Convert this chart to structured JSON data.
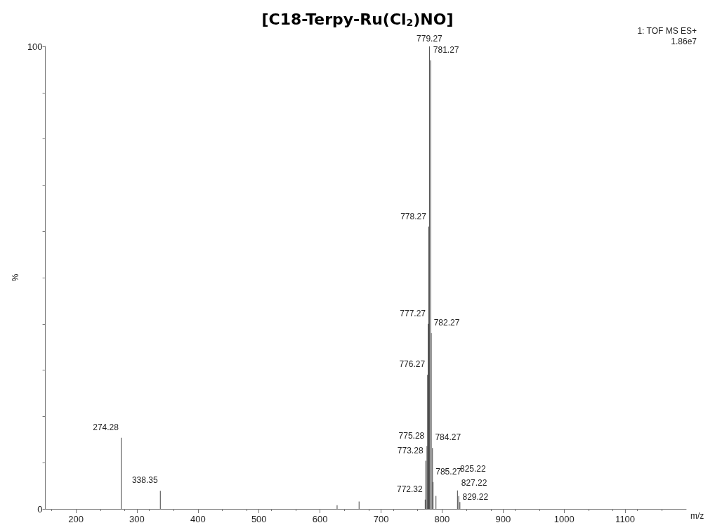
{
  "chart_data": {
    "type": "bar",
    "title": "[C18-Terpy-Ru(Cl$_{2}$)NO]",
    "xlabel": "m/z",
    "ylabel": "%",
    "annotations": [
      "1: TOF MS ES+",
      "1.86e7",
      {
        "text": "274.28",
        "x": 274.28,
        "y": 15.4
      },
      {
        "text": "338.35",
        "x": 338.35,
        "y": 3.9
      },
      {
        "text": "772.32",
        "x": 772.32,
        "y": 2
      },
      {
        "text": "773.28",
        "x": 773.28,
        "y": 10.4
      },
      {
        "text": "775.28",
        "x": 775.28,
        "y": 13.6
      },
      {
        "text": "776.27",
        "x": 776.27,
        "y": 29
      },
      {
        "text": "777.27",
        "x": 777.27,
        "y": 40
      },
      {
        "text": "778.27",
        "x": 778.27,
        "y": 61
      },
      {
        "text": "779.27",
        "x": 779.27,
        "y": 100
      },
      {
        "text": "781.27",
        "x": 781.27,
        "y": 97
      },
      {
        "text": "782.27",
        "x": 782.27,
        "y": 38
      },
      {
        "text": "784.27",
        "x": 784.27,
        "y": 13.2
      },
      {
        "text": "785.27",
        "x": 785.27,
        "y": 5.8
      },
      {
        "text": "825.22",
        "x": 825.22,
        "y": 4
      },
      {
        "text": "827.22",
        "x": 827.22,
        "y": 2.8
      },
      {
        "text": "829.22",
        "x": 829.22,
        "y": 1.5
      }
    ],
    "x": [
      274.28,
      338.35,
      628,
      664,
      772.32,
      773.28,
      775.28,
      776.27,
      777.27,
      778.27,
      779.27,
      781.27,
      782.27,
      784.27,
      785.27,
      790,
      825.22,
      827.22,
      829.22
    ],
    "values": [
      15.4,
      3.9,
      0.8,
      1.6,
      2,
      10.4,
      13.6,
      29,
      40,
      61,
      100,
      97,
      38,
      13.2,
      5.8,
      2.8,
      4,
      2.8,
      1.5
    ],
    "color": "#444444",
    "xlim": [
      150,
      1200
    ],
    "xticks": [
      200,
      300,
      400,
      500,
      600,
      700,
      800,
      900,
      1000,
      1100
    ],
    "ylim": [
      0,
      100
    ],
    "yticks": [
      0,
      {
        "value": 10,
        "label": null
      },
      {
        "value": 20,
        "label": null
      },
      {
        "value": 30,
        "label": null
      },
      {
        "value": 40,
        "label": null
      },
      {
        "value": 50,
        "label": null
      },
      {
        "value": 60,
        "label": null
      },
      {
        "value": 70,
        "label": null
      },
      {
        "value": 80,
        "label": null
      },
      {
        "value": 90,
        "label": null
      },
      100
    ],
    "grid": false
  }
}
